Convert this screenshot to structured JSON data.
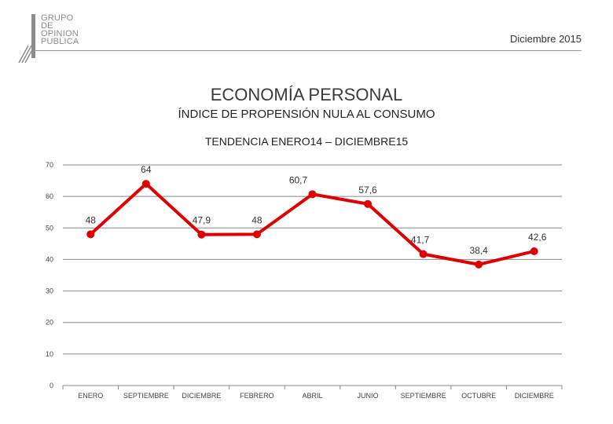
{
  "header": {
    "logo_lines": [
      "GRUPO",
      "DE",
      "OPINION",
      "PUBLICA"
    ],
    "date": "Diciembre 2015"
  },
  "titles": {
    "title": "ECONOMÍA PERSONAL",
    "subtitle": "ÍNDICE DE PROPENSIÓN NULA AL CONSUMO",
    "trend": "TENDENCIA ENERO14 – DICIEMBRE15"
  },
  "colors": {
    "series": "#e00000",
    "grid": "#888888",
    "logo": "#8c8c8c"
  },
  "chart_data": {
    "type": "line",
    "categories": [
      "ENERO",
      "SEPTIEMBRE",
      "DICIEMBRE",
      "FEBRERO",
      "ABRIL",
      "JUNIO",
      "SEPTIEMBRE",
      "OCTUBRE",
      "DICIEMBRE"
    ],
    "series": [
      {
        "values": [
          48,
          64,
          47.9,
          48,
          60.7,
          57.6,
          41.7,
          38.4,
          42.6
        ],
        "labels": [
          "48",
          "64",
          "47,9",
          "48",
          "60,7",
          "57,6",
          "41,7",
          "38,4",
          "42,6"
        ]
      }
    ],
    "yticks": [
      0,
      10,
      20,
      30,
      40,
      50,
      60,
      70
    ],
    "ylim": [
      0,
      70
    ],
    "grid": true,
    "legend": "none",
    "title": "ÍNDICE DE PROPENSIÓN NULA AL CONSUMO",
    "xlabel": "",
    "ylabel": ""
  }
}
